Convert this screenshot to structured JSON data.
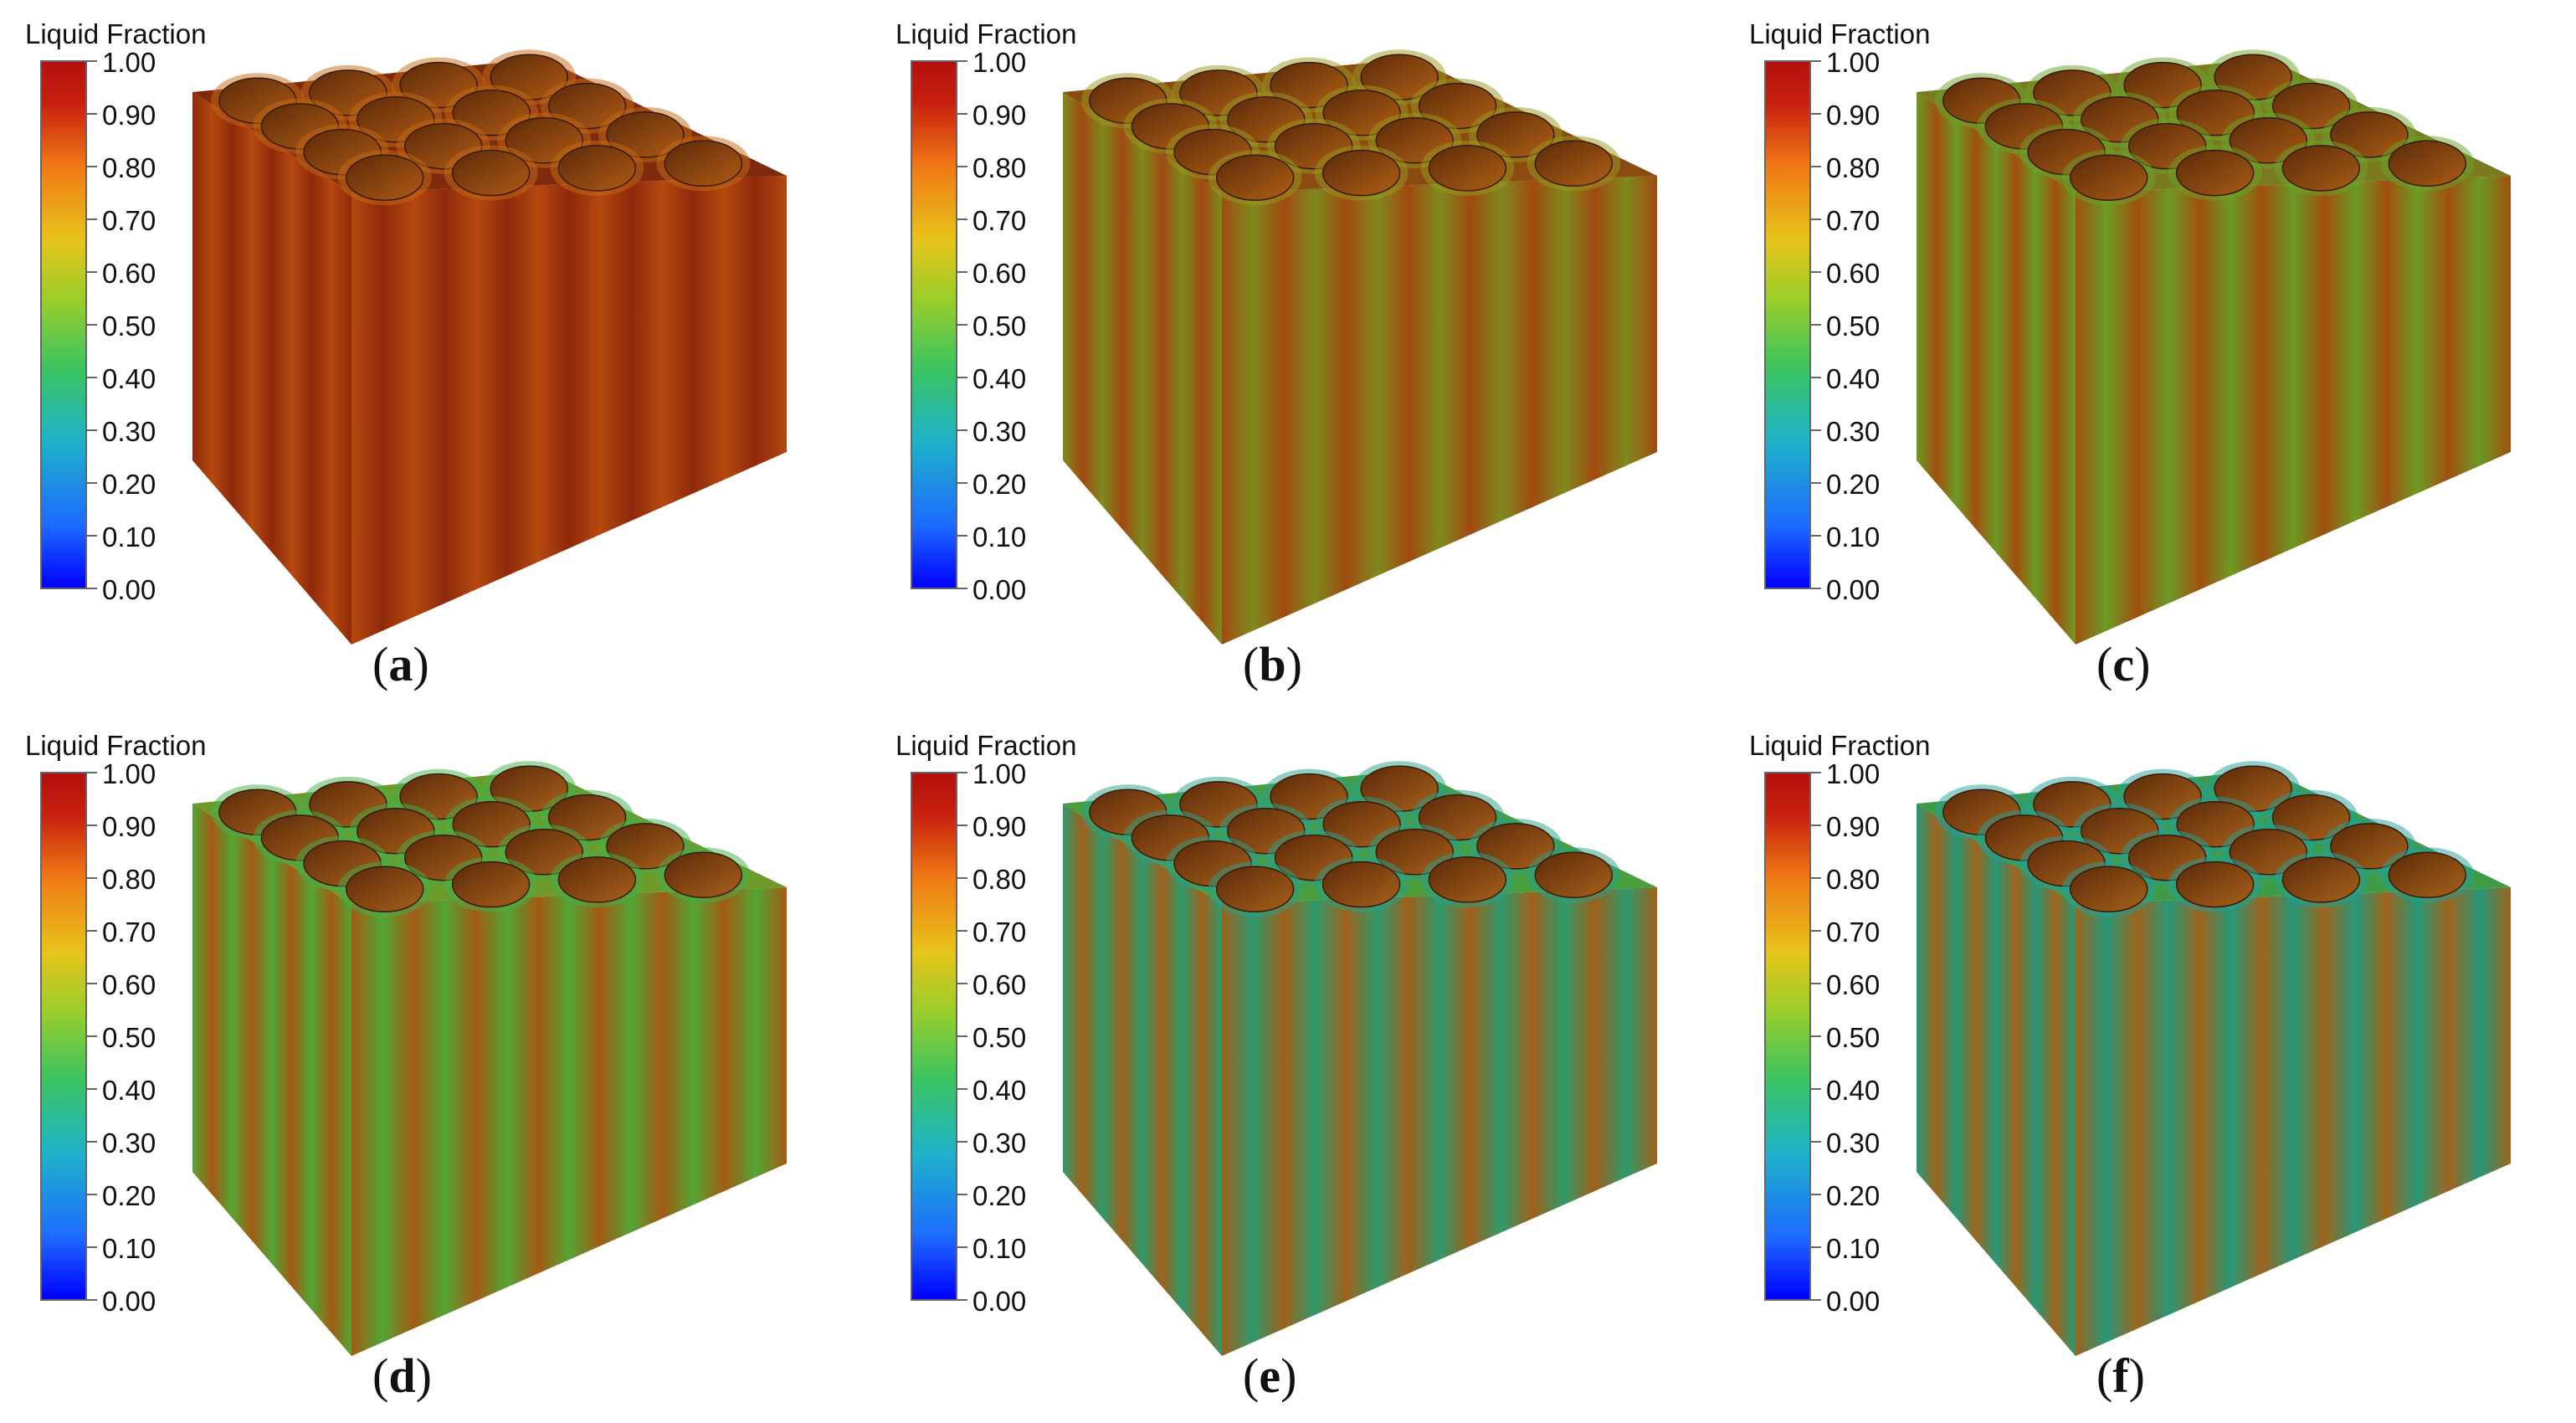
{
  "colorbar": {
    "title": "Liquid Fraction",
    "ticks": [
      "1.00",
      "0.90",
      "0.80",
      "0.70",
      "0.60",
      "0.50",
      "0.40",
      "0.30",
      "0.20",
      "0.10",
      "0.00"
    ]
  },
  "panels": [
    {
      "open": "(",
      "letter": "a",
      "close": ")",
      "top": "#7e2a0c",
      "hole": "#b05a14",
      "band1": "#b4480f",
      "band2": "#8e2a0b",
      "accent": "#c46a16"
    },
    {
      "open": "(",
      "letter": "b",
      "close": ")",
      "top": "#8a4a10",
      "hole": "#b06014",
      "band1": "#a14a10",
      "band2": "#7e8a1e",
      "accent": "#9a9a1f"
    },
    {
      "open": "(",
      "letter": "c",
      "close": ")",
      "top": "#7a7a1f",
      "hole": "#a85c14",
      "band1": "#a1500f",
      "band2": "#6b9a24",
      "accent": "#68a42a"
    },
    {
      "open": "(",
      "letter": "d",
      "close": ")",
      "top": "#6e9a2a",
      "hole": "#a8601a",
      "band1": "#a45a14",
      "band2": "#52a534",
      "accent": "#44b04a"
    },
    {
      "open": "(",
      "letter": "e",
      "close": ")",
      "top": "#4a9e3c",
      "hole": "#a8601a",
      "band1": "#a0601a",
      "band2": "#2e9a6c",
      "accent": "#2aa08a"
    },
    {
      "open": "(",
      "letter": "f",
      "close": ")",
      "top": "#3f9c46",
      "hole": "#a8621a",
      "band1": "#9e641c",
      "band2": "#279878",
      "accent": "#22a09a"
    }
  ]
}
